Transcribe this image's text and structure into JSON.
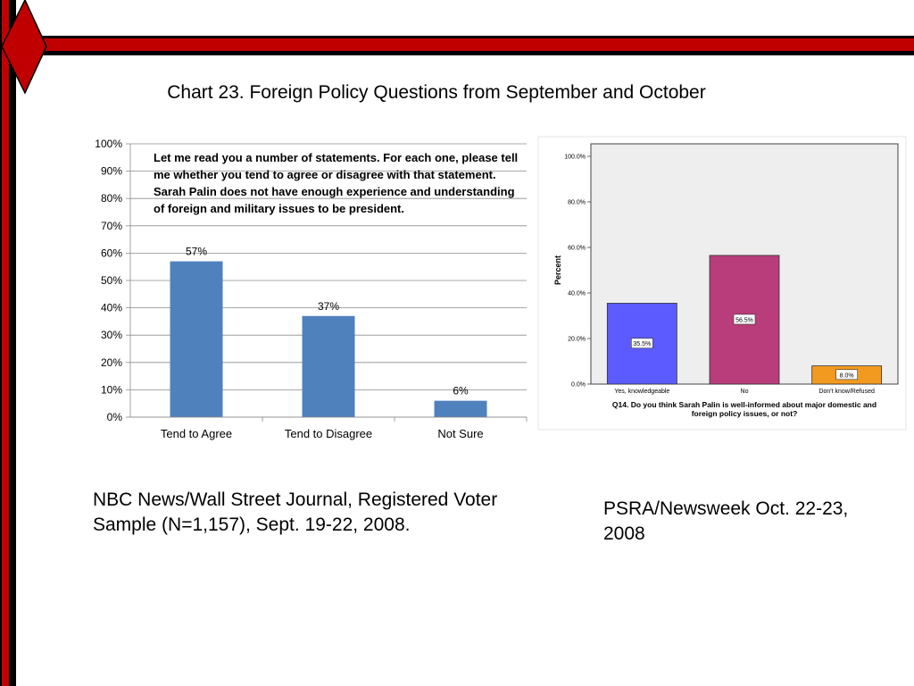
{
  "title": "Chart 23. Foreign Policy Questions from September and October",
  "colors": {
    "accent_red": "#c00000",
    "bar_blue": "#4f81bd"
  },
  "chart_data": [
    {
      "type": "bar",
      "question": "Let me read you a number of statements. For each one, please tell me whether you tend to agree or disagree with that statement. Sarah Palin does not have enough experience and understanding of foreign and military issues to be president.",
      "categories": [
        "Tend to Agree",
        "Tend to Disagree",
        "Not Sure"
      ],
      "values": [
        57,
        37,
        6
      ],
      "labels": [
        "57%",
        "37%",
        "6%"
      ],
      "ylim": [
        0,
        100
      ],
      "yticks": [
        "0%",
        "10%",
        "20%",
        "30%",
        "40%",
        "50%",
        "60%",
        "70%",
        "80%",
        "90%",
        "100%"
      ],
      "grid": true,
      "source": "NBC News/Wall Street Journal, Registered Voter Sample (N=1,157), Sept. 19-22, 2008."
    },
    {
      "type": "bar",
      "title": "Q14. Do you think Sarah Palin is well-informed about major domestic and foreign policy issues, or not?",
      "ylabel": "Percent",
      "categories": [
        "Yes, knowledgeable",
        "No",
        "Don't know/Refused"
      ],
      "values": [
        35.5,
        56.5,
        8.0
      ],
      "labels": [
        "35.5%",
        "56.5%",
        "8.0%"
      ],
      "colors": [
        "#5b5bff",
        "#b83d7a",
        "#f29a1f"
      ],
      "ylim": [
        0,
        100
      ],
      "yticks": [
        "0.0%",
        "20.0%",
        "40.0%",
        "60.0%",
        "80.0%",
        "100.0%"
      ],
      "source": "PSRA/Newsweek Oct. 22-23, 2008"
    }
  ]
}
